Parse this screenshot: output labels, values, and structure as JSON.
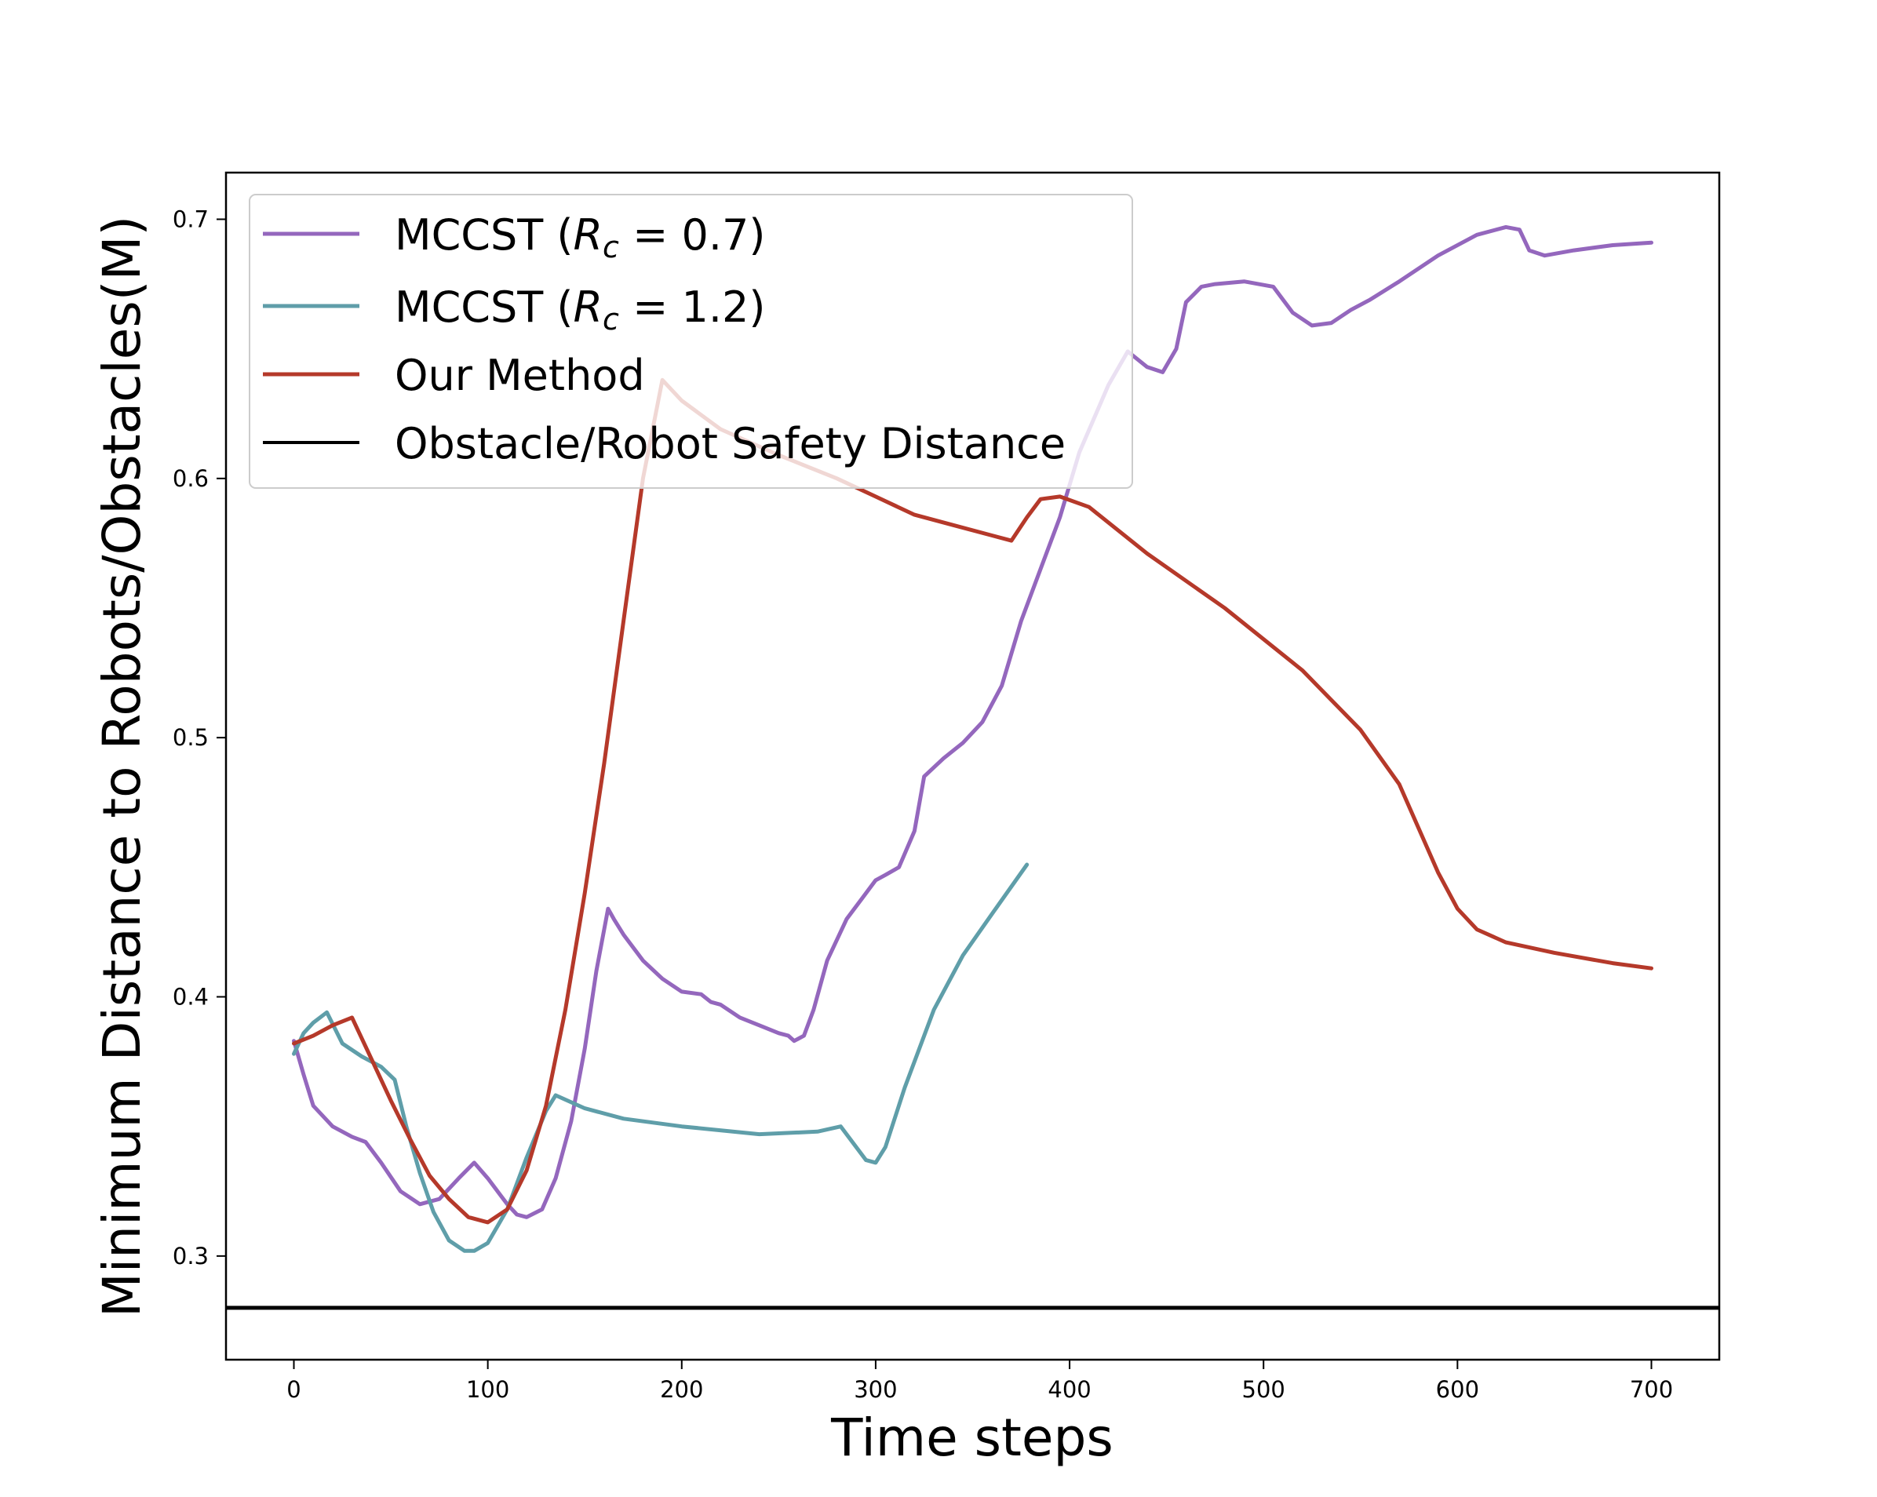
{
  "chart_data": {
    "type": "line",
    "title": "",
    "xlabel": "Time steps",
    "ylabel": "Minimum Distance to Robots/Obstacles(M)",
    "xlim": [
      -35,
      735
    ],
    "ylim": [
      0.26,
      0.718
    ],
    "xticks": [
      0,
      100,
      200,
      300,
      400,
      500,
      600,
      700
    ],
    "yticks": [
      0.3,
      0.4,
      0.5,
      0.6,
      0.7
    ],
    "grid": false,
    "legend_position": "top-left",
    "series": [
      {
        "name": "MCCST (R_c = 0.7)",
        "legend_prefix": "MCCST (",
        "legend_math_var": "R",
        "legend_math_sub": "c",
        "legend_math_rest": " = 0.7)",
        "color": "#9467bd",
        "x": [
          0,
          5,
          10,
          20,
          30,
          37,
          45,
          55,
          65,
          75,
          85,
          93,
          100,
          110,
          115,
          120,
          128,
          135,
          143,
          150,
          156,
          162,
          165,
          170,
          180,
          190,
          200,
          210,
          215,
          220,
          230,
          240,
          250,
          255,
          258,
          263,
          268,
          275,
          285,
          295,
          300,
          305,
          312,
          320,
          325,
          335,
          345,
          355,
          365,
          375,
          385,
          395,
          405,
          420,
          430,
          440,
          448,
          455,
          460,
          468,
          475,
          490,
          505,
          515,
          525,
          535,
          545,
          555,
          570,
          590,
          610,
          625,
          632,
          637,
          645,
          660,
          680,
          700
        ],
        "values": [
          0.383,
          0.37,
          0.358,
          0.35,
          0.346,
          0.344,
          0.336,
          0.325,
          0.32,
          0.322,
          0.33,
          0.336,
          0.33,
          0.32,
          0.316,
          0.315,
          0.318,
          0.33,
          0.352,
          0.38,
          0.41,
          0.434,
          0.43,
          0.424,
          0.414,
          0.407,
          0.402,
          0.401,
          0.398,
          0.397,
          0.392,
          0.389,
          0.386,
          0.385,
          0.383,
          0.385,
          0.395,
          0.414,
          0.43,
          0.44,
          0.445,
          0.447,
          0.45,
          0.464,
          0.485,
          0.492,
          0.498,
          0.506,
          0.52,
          0.545,
          0.565,
          0.585,
          0.61,
          0.636,
          0.649,
          0.643,
          0.641,
          0.65,
          0.668,
          0.674,
          0.675,
          0.676,
          0.674,
          0.664,
          0.659,
          0.66,
          0.665,
          0.669,
          0.676,
          0.686,
          0.694,
          0.697,
          0.696,
          0.688,
          0.686,
          0.688,
          0.69,
          0.691
        ]
      },
      {
        "name": "MCCST (R_c = 1.2)",
        "legend_prefix": "MCCST (",
        "legend_math_var": "R",
        "legend_math_sub": "c",
        "legend_math_rest": " = 1.2)",
        "color": "#5f9ea9",
        "x": [
          0,
          5,
          10,
          17,
          25,
          35,
          45,
          52,
          58,
          65,
          72,
          80,
          88,
          93,
          100,
          110,
          120,
          130,
          135,
          150,
          170,
          200,
          240,
          270,
          282,
          290,
          295,
          300,
          305,
          315,
          330,
          345,
          360,
          378
        ],
        "values": [
          0.378,
          0.386,
          0.39,
          0.394,
          0.382,
          0.377,
          0.373,
          0.368,
          0.35,
          0.332,
          0.317,
          0.306,
          0.302,
          0.302,
          0.305,
          0.318,
          0.338,
          0.356,
          0.362,
          0.357,
          0.353,
          0.35,
          0.347,
          0.348,
          0.35,
          0.342,
          0.337,
          0.336,
          0.342,
          0.365,
          0.395,
          0.416,
          0.432,
          0.451
        ]
      },
      {
        "name": "Our Method",
        "color": "#b5392a",
        "x": [
          0,
          10,
          20,
          30,
          40,
          50,
          60,
          70,
          80,
          90,
          100,
          110,
          120,
          130,
          140,
          150,
          160,
          170,
          180,
          190,
          200,
          220,
          250,
          280,
          300,
          320,
          340,
          360,
          370,
          378,
          385,
          395,
          410,
          440,
          480,
          520,
          550,
          570,
          580,
          590,
          600,
          610,
          625,
          650,
          680,
          700
        ],
        "values": [
          0.382,
          0.385,
          0.389,
          0.392,
          0.376,
          0.36,
          0.345,
          0.331,
          0.322,
          0.315,
          0.313,
          0.318,
          0.333,
          0.358,
          0.395,
          0.44,
          0.49,
          0.545,
          0.6,
          0.638,
          0.63,
          0.619,
          0.609,
          0.6,
          0.593,
          0.586,
          0.582,
          0.578,
          0.576,
          0.585,
          0.592,
          0.593,
          0.589,
          0.571,
          0.55,
          0.526,
          0.503,
          0.482,
          0.465,
          0.448,
          0.434,
          0.426,
          0.421,
          0.417,
          0.413,
          0.411
        ]
      },
      {
        "name": "Obstacle/Robot Safety Distance",
        "color": "#000000",
        "x": [
          -35,
          735
        ],
        "values": [
          0.28,
          0.28
        ]
      }
    ]
  }
}
